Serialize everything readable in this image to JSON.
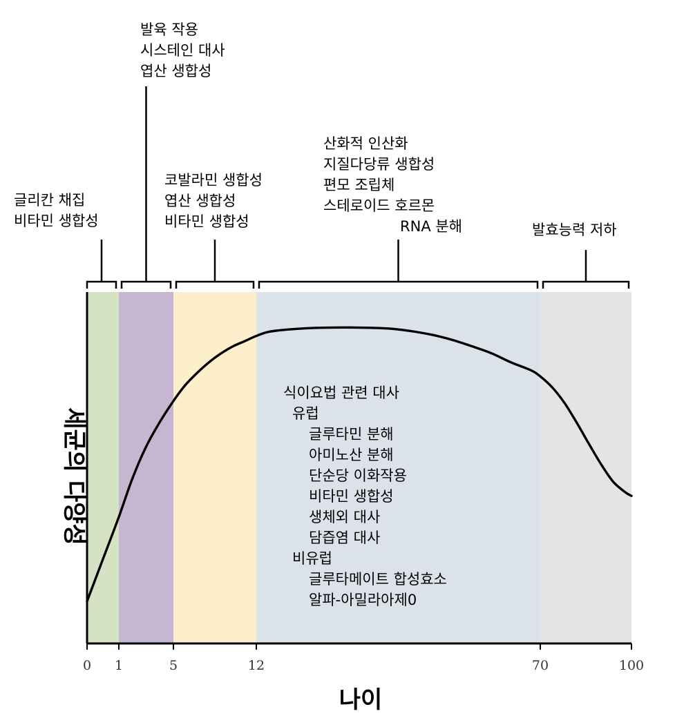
{
  "chart_data": {
    "type": "line",
    "xlabel": "나이",
    "ylabel": "세균의 다양성",
    "x_ticks": [
      "0",
      "1",
      "5",
      "12",
      "70",
      "100"
    ],
    "stages": [
      {
        "start": 0,
        "end": 1,
        "color": "#d6e2c4"
      },
      {
        "start": 1,
        "end": 5,
        "color": "#c7b6d2"
      },
      {
        "start": 5,
        "end": 12,
        "color": "#fdefcc"
      },
      {
        "start": 12,
        "end": 70,
        "color": "#dbe2e9"
      },
      {
        "start": 70,
        "end": 100,
        "color": "#e4e4e4"
      }
    ],
    "annotations": [
      {
        "stage": 0,
        "lines": [
          "글리칸 채집",
          "비타민 생합성"
        ]
      },
      {
        "stage": 1,
        "lines": [
          "발육 작용",
          "시스테인 대사",
          "엽산 생합성"
        ]
      },
      {
        "stage": 2,
        "lines": [
          "코발라민 생합성",
          "엽산 생합성",
          "비타민 생합성"
        ]
      },
      {
        "stage": 3,
        "lines": [
          "산화적 인산화",
          "지질다당류 생합성",
          "편모 조립체",
          "스테로이드 호르몬",
          "RNA 분해"
        ]
      },
      {
        "stage": 4,
        "lines": [
          "발효능력 저하"
        ]
      }
    ],
    "inner_notes": [
      {
        "text": "식이요법 관련 대사",
        "level": 0
      },
      {
        "text": "유럽",
        "level": 1
      },
      {
        "text": "글루타민 분해",
        "level": 2
      },
      {
        "text": "아미노산 분해",
        "level": 2
      },
      {
        "text": "단순당 이화작용",
        "level": 2
      },
      {
        "text": "비타민 생합성",
        "level": 2
      },
      {
        "text": "생체외 대사",
        "level": 2
      },
      {
        "text": "담즙염 대사",
        "level": 2
      },
      {
        "text": "비유럽",
        "level": 1
      },
      {
        "text": "글루타메이트 합성효소",
        "level": 2
      },
      {
        "text": "알파-아밀라아제0",
        "level": 2
      }
    ],
    "curve": {
      "x": [
        0,
        0.5,
        1,
        2,
        3,
        4,
        5,
        6,
        7,
        8,
        9,
        10,
        11,
        12,
        14,
        16,
        20,
        24,
        28,
        32,
        36,
        40,
        44,
        48,
        52,
        56,
        60,
        64,
        68,
        70,
        74,
        78,
        82,
        86,
        90,
        94,
        98,
        100
      ],
      "y": [
        0.12,
        0.24,
        0.36,
        0.47,
        0.56,
        0.63,
        0.69,
        0.735,
        0.77,
        0.8,
        0.825,
        0.845,
        0.86,
        0.875,
        0.885,
        0.89,
        0.895,
        0.898,
        0.899,
        0.899,
        0.898,
        0.895,
        0.888,
        0.878,
        0.864,
        0.846,
        0.826,
        0.8,
        0.778,
        0.76,
        0.728,
        0.684,
        0.628,
        0.568,
        0.51,
        0.46,
        0.43,
        0.42
      ]
    }
  }
}
